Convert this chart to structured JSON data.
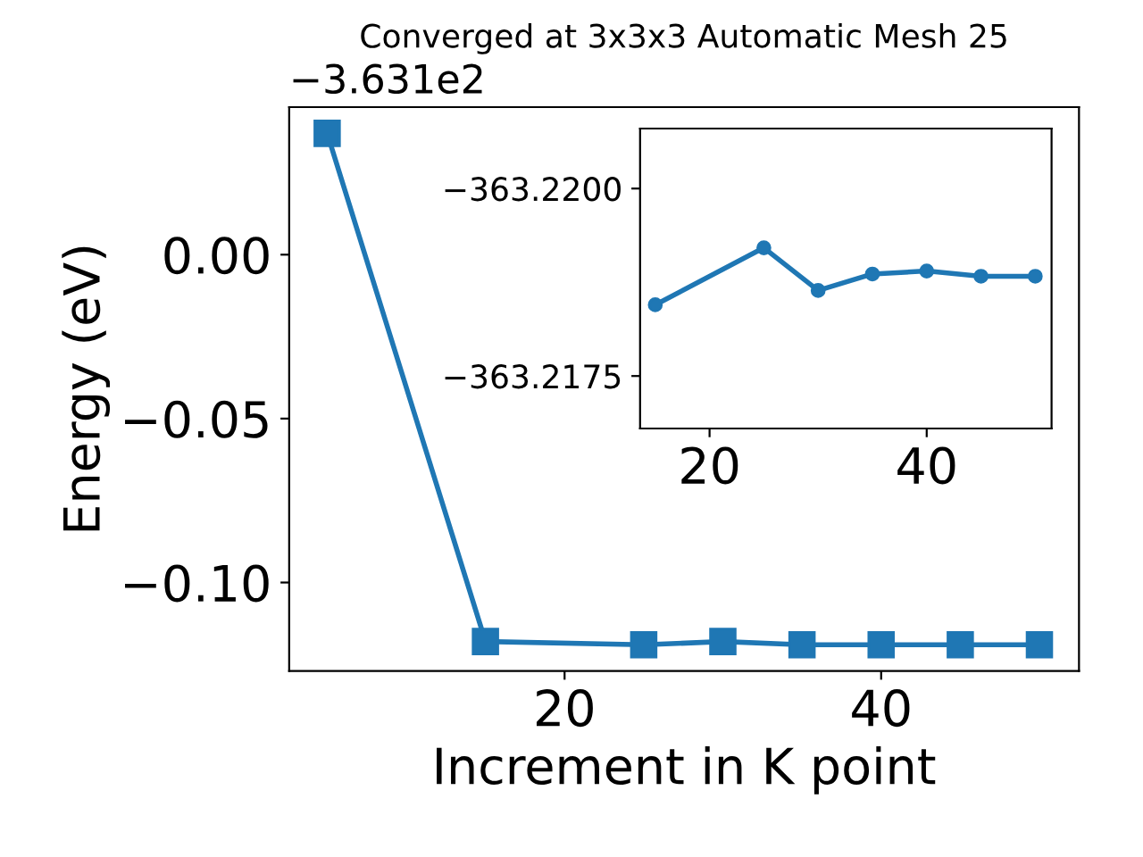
{
  "chart_data": [
    {
      "type": "line",
      "title": "Converged at 3x3x3 Automatic Mesh 25",
      "xlabel": "Increment in K point",
      "ylabel": "Energy (eV)",
      "annotations": [
        "−3.631e2"
      ],
      "x": [
        5,
        15,
        25,
        30,
        35,
        40,
        45,
        50
      ],
      "series": [
        {
          "color": "#1f77b4",
          "values": [
            0.037,
            -0.118,
            -0.119,
            -0.118,
            -0.119,
            -0.119,
            -0.119,
            -0.119
          ]
        }
      ],
      "marker": "square",
      "line_style": "solid",
      "grid": false,
      "legend": false,
      "xlim": [
        2.6,
        52.5
      ],
      "ylim": [
        -0.127,
        0.045
      ],
      "xticks": [
        20,
        40
      ],
      "yticks": [
        {
          "value": 0,
          "label": "0.00"
        },
        {
          "value": -0.05,
          "label": "−0.05"
        },
        {
          "value": -0.1,
          "label": "−0.10"
        }
      ]
    },
    {
      "type": "line",
      "x": [
        15,
        25,
        30,
        35,
        40,
        45,
        50
      ],
      "series": [
        {
          "color": "#1f77b4",
          "values": [
            -363.21845,
            -363.21921,
            -363.21864,
            -363.21886,
            -363.2189,
            -363.21883,
            -363.21883
          ]
        }
      ],
      "marker": "circle",
      "line_style": "solid",
      "grid": false,
      "legend": false,
      "xlim": [
        13.6,
        51.5
      ],
      "ylim": [
        -363.2168,
        -363.2208
      ],
      "xticks": [
        20,
        40
      ],
      "yticks": [
        {
          "value": -363.22,
          "label": "−363.2200"
        },
        {
          "value": -363.2175,
          "label": "−363.2175"
        }
      ]
    }
  ]
}
